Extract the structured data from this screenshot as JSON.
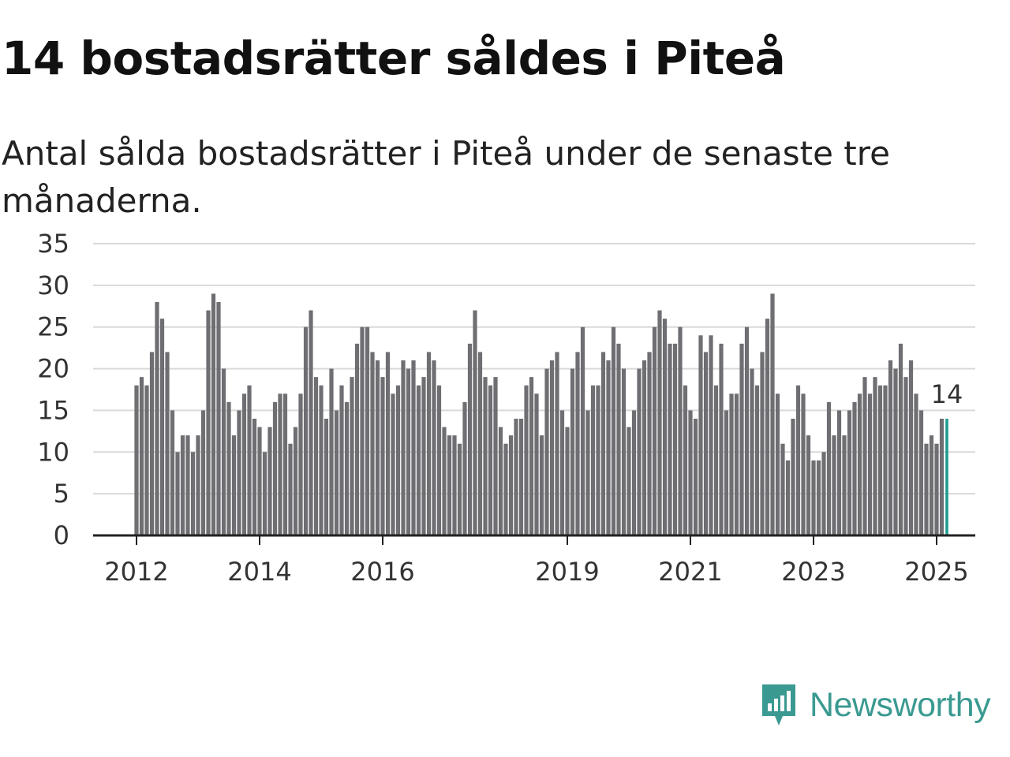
{
  "header": {
    "title": "14 bostadsrätter såldes i Piteå",
    "subtitle": "Antal sålda bostadsrätter i Piteå under de senaste tre månaderna."
  },
  "brand": {
    "name": "Newsworthy",
    "color": "#3a9a91"
  },
  "colors": {
    "bar": "#6e6e73",
    "highlight": "#1f9c8f",
    "grid": "#d9d9d9",
    "axis": "#222222"
  },
  "chart_data": {
    "type": "bar",
    "ylim": [
      0,
      35
    ],
    "yticks": [
      0,
      5,
      10,
      15,
      20,
      25,
      30,
      35
    ],
    "xticks": [
      "2012",
      "2014",
      "2016",
      "2019",
      "2021",
      "2023",
      "2025"
    ],
    "grid": true,
    "start": "2012-01",
    "values": [
      18,
      19,
      18,
      22,
      28,
      26,
      22,
      15,
      10,
      12,
      12,
      10,
      12,
      15,
      27,
      29,
      28,
      20,
      16,
      12,
      15,
      17,
      18,
      14,
      13,
      10,
      13,
      16,
      17,
      17,
      11,
      13,
      17,
      25,
      27,
      19,
      18,
      14,
      20,
      15,
      18,
      16,
      19,
      23,
      25,
      25,
      22,
      21,
      19,
      22,
      17,
      18,
      21,
      20,
      21,
      18,
      19,
      22,
      21,
      18,
      13,
      12,
      12,
      11,
      16,
      23,
      27,
      22,
      19,
      18,
      19,
      13,
      11,
      12,
      14,
      14,
      18,
      19,
      17,
      12,
      20,
      21,
      22,
      15,
      13,
      20,
      22,
      25,
      15,
      18,
      18,
      22,
      21,
      25,
      23,
      20,
      13,
      15,
      20,
      21,
      22,
      25,
      27,
      26,
      23,
      23,
      25,
      18,
      15,
      14,
      24,
      22,
      24,
      18,
      23,
      15,
      17,
      17,
      23,
      25,
      20,
      18,
      22,
      26,
      29,
      17,
      11,
      9,
      14,
      18,
      17,
      12,
      9,
      9,
      10,
      16,
      12,
      15,
      12,
      15,
      16,
      17,
      19,
      17,
      19,
      18,
      18,
      21,
      20,
      23,
      19,
      21,
      17,
      15,
      11,
      12,
      11,
      14
    ],
    "highlight_value": 14,
    "highlight_label": "14"
  }
}
